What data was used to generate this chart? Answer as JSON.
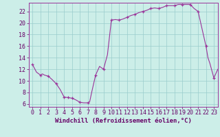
{
  "x_hours": [
    0,
    0.5,
    1,
    1.25,
    1.5,
    2,
    2.5,
    3,
    3.5,
    4,
    4.25,
    4.5,
    5,
    5.5,
    6,
    6.5,
    7,
    7.25,
    7.5,
    8,
    8.5,
    9,
    9.5,
    10,
    10.25,
    10.5,
    11,
    11.5,
    12,
    12.5,
    13,
    13.5,
    14,
    14.5,
    15,
    15.5,
    16,
    16.5,
    17,
    17.5,
    18,
    18.5,
    19,
    19.5,
    20,
    20.5,
    21,
    21.5,
    22,
    22.25,
    22.5,
    23,
    23.5
  ],
  "y_vals": [
    12.8,
    11.5,
    11.0,
    11.2,
    11.0,
    10.8,
    10.2,
    9.5,
    8.5,
    7.2,
    7.15,
    7.1,
    7.0,
    6.7,
    6.3,
    6.2,
    6.2,
    6.4,
    8.0,
    11.0,
    12.5,
    12.0,
    14.5,
    20.5,
    20.55,
    20.6,
    20.5,
    20.7,
    21.0,
    21.3,
    21.5,
    21.8,
    22.0,
    22.2,
    22.5,
    22.6,
    22.5,
    22.7,
    23.0,
    23.0,
    23.0,
    23.2,
    23.2,
    23.2,
    23.2,
    22.5,
    22.0,
    19.0,
    16.0,
    14.0,
    13.0,
    10.5,
    12.0
  ],
  "x_markers": [
    0,
    1,
    2,
    3,
    4,
    4.5,
    5,
    6,
    7,
    8,
    9,
    10,
    11,
    12,
    13,
    14,
    15,
    16,
    17,
    18,
    19,
    20,
    21,
    22,
    23
  ],
  "y_markers": [
    12.8,
    11.0,
    10.8,
    9.5,
    7.2,
    7.1,
    7.0,
    6.3,
    6.2,
    11.0,
    12.0,
    20.5,
    20.5,
    21.0,
    21.5,
    22.0,
    22.5,
    22.5,
    23.0,
    23.0,
    23.2,
    23.2,
    22.0,
    16.0,
    10.5
  ],
  "line_color": "#993399",
  "marker_color": "#993399",
  "bg_color": "#cceee8",
  "grid_color": "#99cccc",
  "xlabel": "Windchill (Refroidissement éolien,°C)",
  "xlim": [
    -0.5,
    23.5
  ],
  "ylim": [
    5.5,
    23.5
  ],
  "yticks": [
    6,
    8,
    10,
    12,
    14,
    16,
    18,
    20,
    22
  ],
  "xticks": [
    0,
    1,
    2,
    3,
    4,
    5,
    6,
    7,
    8,
    9,
    10,
    11,
    12,
    13,
    14,
    15,
    16,
    17,
    18,
    19,
    20,
    21,
    22,
    23
  ],
  "label_fontsize": 6.5,
  "tick_fontsize": 6.0
}
